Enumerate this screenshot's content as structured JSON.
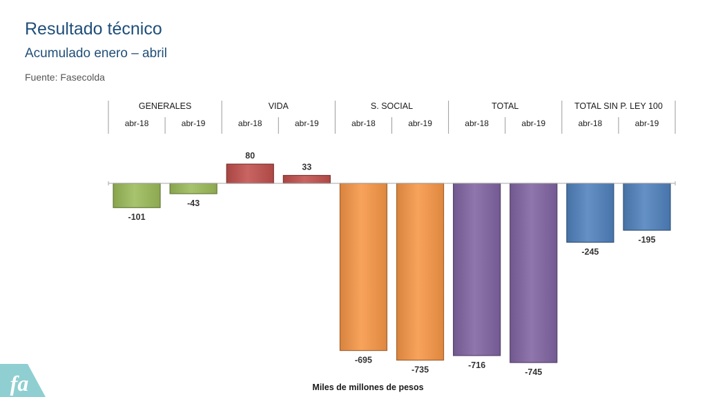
{
  "header": {
    "title": "Resultado técnico",
    "subtitle": "Acumulado enero – abril",
    "source": "Fuente: Fasecolda"
  },
  "logo": {
    "name": "fasecolda-logo",
    "text": "fa",
    "color": "#8fcfd1"
  },
  "chart_data": {
    "type": "bar",
    "ylabel": "Miles de millones de pesos",
    "ylim": [
      -760,
      100
    ],
    "grid": false,
    "legend": "none",
    "groups": [
      {
        "name": "GENERALES",
        "color": "#9bbb59",
        "categories": [
          "abr-18",
          "abr-19"
        ],
        "values": [
          -101,
          -43
        ]
      },
      {
        "name": "VIDA",
        "color": "#c0504d",
        "categories": [
          "abr-18",
          "abr-19"
        ],
        "values": [
          80,
          33
        ]
      },
      {
        "name": "S. SOCIAL",
        "color": "#f79646",
        "categories": [
          "abr-18",
          "abr-19"
        ],
        "values": [
          -695,
          -735
        ]
      },
      {
        "name": "TOTAL",
        "color": "#8064a2",
        "categories": [
          "abr-18",
          "abr-19"
        ],
        "values": [
          -716,
          -745
        ]
      },
      {
        "name": "TOTAL SIN P. LEY 100",
        "color": "#4f81bd",
        "categories": [
          "abr-18",
          "abr-19"
        ],
        "values": [
          -245,
          -195
        ]
      }
    ]
  }
}
